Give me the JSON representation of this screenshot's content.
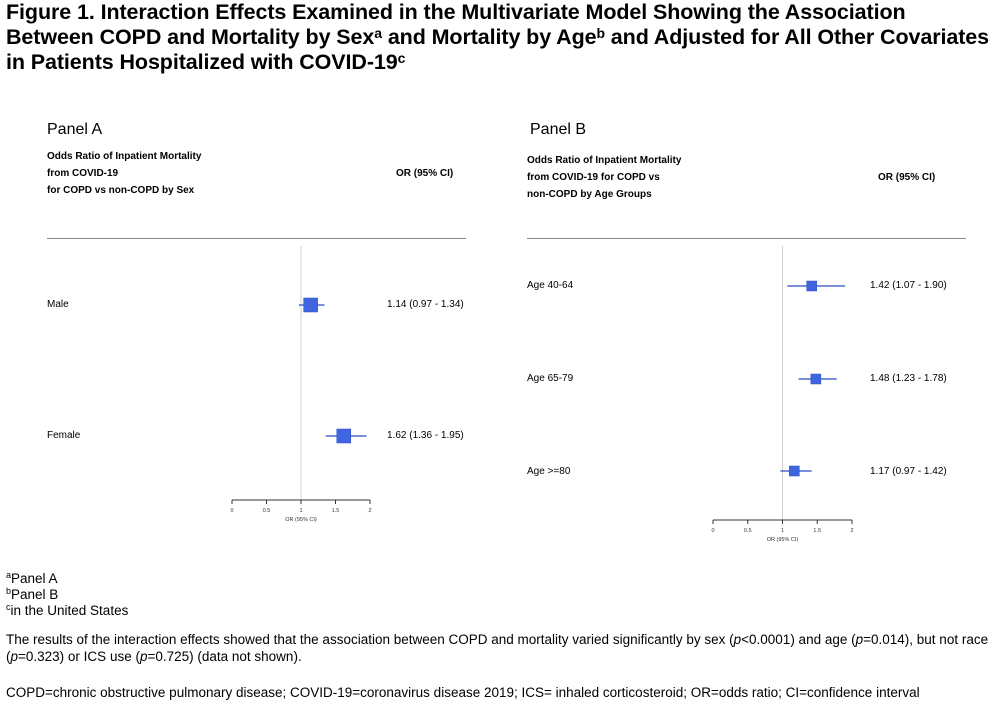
{
  "figure": {
    "title_part1": "Figure 1. Interaction Effects Examined in the Multivariate Model Showing the Association Between COPD and Mortality by Sex",
    "title_sup_a": "a",
    "title_part2": " and Mortality by Age",
    "title_sup_b": "b",
    "title_part3": " and Adjusted for All Other Covariates in Patients Hospitalized with COVID-19",
    "title_sup_c": "c"
  },
  "panel_a": {
    "label": "Panel A",
    "header_lines": [
      "Odds Ratio of Inpatient Mortality",
      "from COVID-19",
      "for COPD vs non-COPD by Sex"
    ],
    "or_header": "OR (95% CI)",
    "axis_label": "OR (95% CI)"
  },
  "panel_b": {
    "label": "Panel B",
    "header_lines": [
      "Odds Ratio of Inpatient Mortality",
      "from COVID-19 for COPD vs",
      "non-COPD by Age Groups"
    ],
    "or_header": "OR (95% CI)",
    "axis_label": "OR (95% CI)"
  },
  "chart_data": [
    {
      "type": "scatter",
      "subtype": "forest",
      "panel": "Panel A",
      "xlabel": "OR (95% CI)",
      "xlim": [
        0,
        2
      ],
      "xticks": [
        0,
        0.5,
        1,
        1.5,
        2
      ],
      "xtick_labels": [
        "0",
        "0.5",
        "1",
        "1.5",
        "2"
      ],
      "reference_line": 1,
      "rows": [
        {
          "label": "Male",
          "or": 1.14,
          "lower": 0.97,
          "upper": 1.34,
          "ci_text": "1.14 (0.97 - 1.34)"
        },
        {
          "label": "Female",
          "or": 1.62,
          "lower": 1.36,
          "upper": 1.95,
          "ci_text": "1.62 (1.36 - 1.95)"
        }
      ]
    },
    {
      "type": "scatter",
      "subtype": "forest",
      "panel": "Panel B",
      "xlabel": "OR (95% CI)",
      "xlim": [
        0,
        2
      ],
      "xticks": [
        0,
        0.5,
        1,
        1.5,
        2
      ],
      "xtick_labels": [
        "0",
        "0.5",
        "1",
        "1.5",
        "2"
      ],
      "reference_line": 1,
      "rows": [
        {
          "label": "Age 40-64",
          "or": 1.42,
          "lower": 1.07,
          "upper": 1.9,
          "ci_text": "1.42 (1.07 - 1.90)"
        },
        {
          "label": "Age 65-79",
          "or": 1.48,
          "lower": 1.23,
          "upper": 1.78,
          "ci_text": "1.48 (1.23 - 1.78)"
        },
        {
          "label": "Age >=80",
          "or": 1.17,
          "lower": 0.97,
          "upper": 1.42,
          "ci_text": "1.17 (0.97 - 1.42)"
        }
      ]
    }
  ],
  "colors": {
    "marker": "#3f66e0",
    "ci_line": "#2b4cc4",
    "ref_line": "#cfcfcf",
    "axis": "#333333"
  },
  "footnotes": [
    {
      "sup": "a",
      "text": "Panel A"
    },
    {
      "sup": "b",
      "text": "Panel B"
    },
    {
      "sup": "c",
      "text": "in the United States"
    }
  ],
  "results": {
    "t1": "The results of the interaction effects showed that the association between COPD and mortality varied significantly by sex (",
    "p": "p",
    "t2": "<0.0001) and age (",
    "t3": "=0.014), but not race (",
    "t4": "=0.323) or ICS use (",
    "t5": "=0.725) (data not shown)."
  },
  "abbreviations": "COPD=chronic obstructive pulmonary disease; COVID-19=coronavirus disease 2019; ICS= inhaled corticosteroid; OR=odds ratio; CI=confidence interval"
}
